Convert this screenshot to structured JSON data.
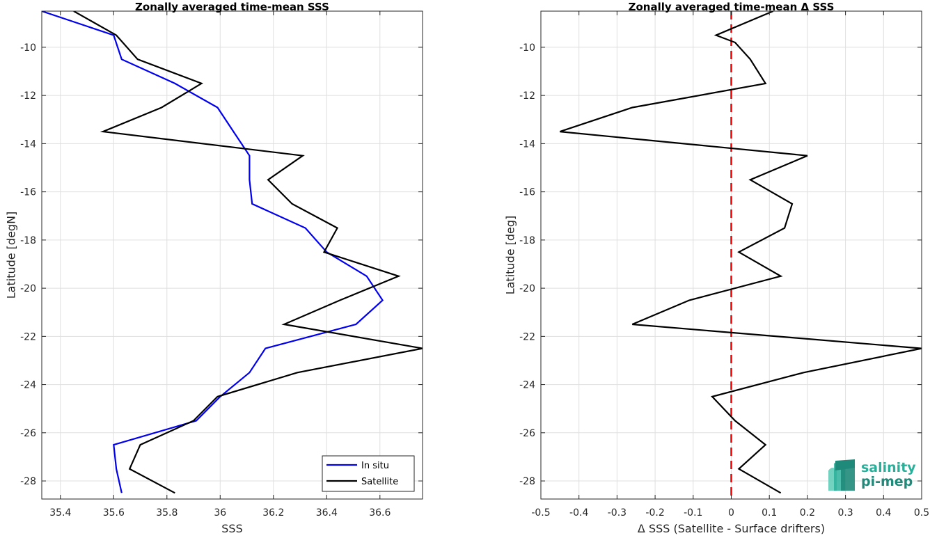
{
  "chart_data": [
    {
      "type": "line",
      "title": "Zonally averaged time-mean SSS",
      "xlabel": "SSS",
      "ylabel": "Latitude [degN]",
      "xlim": [
        35.33,
        36.76
      ],
      "ylim": [
        -28.75,
        -8.5
      ],
      "xticks": [
        35.4,
        35.6,
        35.8,
        36,
        36.2,
        36.4,
        36.6
      ],
      "xtick_labels": [
        "35.4",
        "35.6",
        "35.8",
        "36",
        "36.2",
        "36.4",
        "36.6"
      ],
      "yticks": [
        -10,
        -12,
        -14,
        -16,
        -18,
        -20,
        -22,
        -24,
        -26,
        -28
      ],
      "ytick_labels": [
        "-10",
        "-12",
        "-14",
        "-16",
        "-18",
        "-20",
        "-22",
        "-24",
        "-26",
        "-28"
      ],
      "grid": true,
      "legend": "bottom-right",
      "series": [
        {
          "name": "In situ",
          "color": "#0000ee",
          "x": [
            35.33,
            35.6,
            35.63,
            35.83,
            35.99,
            36.05,
            36.11,
            36.11,
            36.12,
            36.32,
            36.4,
            36.55,
            36.61,
            36.51,
            36.17,
            36.11,
            36.0,
            35.91,
            35.6,
            35.61,
            35.63
          ],
          "y": [
            -8.5,
            -9.5,
            -10.5,
            -11.5,
            -12.5,
            -13.5,
            -14.5,
            -15.5,
            -16.5,
            -17.5,
            -18.5,
            -19.5,
            -20.5,
            -21.5,
            -22.5,
            -23.5,
            -24.5,
            -25.5,
            -26.5,
            -27.5,
            -28.5
          ]
        },
        {
          "name": "Satellite",
          "color": "#000000",
          "x": [
            35.45,
            35.61,
            35.69,
            35.93,
            35.78,
            35.56,
            36.31,
            36.18,
            36.27,
            36.44,
            36.39,
            36.67,
            36.45,
            36.24,
            36.76,
            36.29,
            35.99,
            35.9,
            35.7,
            35.66,
            35.83
          ],
          "y": [
            -8.5,
            -9.5,
            -10.5,
            -11.5,
            -12.5,
            -13.5,
            -14.5,
            -15.5,
            -16.5,
            -17.5,
            -18.5,
            -19.5,
            -20.5,
            -21.5,
            -22.5,
            -23.5,
            -24.5,
            -25.5,
            -26.5,
            -27.5,
            -28.5
          ]
        }
      ]
    },
    {
      "type": "line",
      "title": "Zonally averaged time-mean Δ SSS",
      "xlabel": "Δ SSS (Satellite - Surface drifters)",
      "ylabel": "Latitude [deg]",
      "xlim": [
        -0.5,
        0.5
      ],
      "ylim": [
        -28.75,
        -8.5
      ],
      "xticks": [
        -0.5,
        -0.4,
        -0.3,
        -0.2,
        -0.1,
        0,
        0.1,
        0.2,
        0.3,
        0.4,
        0.5
      ],
      "xtick_labels": [
        "-0.5",
        "-0.4",
        "-0.3",
        "-0.2",
        "-0.1",
        "0",
        "0.1",
        "0.2",
        "0.3",
        "0.4",
        "0.5"
      ],
      "yticks": [
        -10,
        -12,
        -14,
        -16,
        -18,
        -20,
        -22,
        -24,
        -26,
        -28
      ],
      "ytick_labels": [
        "-10",
        "-12",
        "-14",
        "-16",
        "-18",
        "-20",
        "-22",
        "-24",
        "-26",
        "-28"
      ],
      "grid": true,
      "reference_line": {
        "x": 0,
        "color": "#ee0000",
        "style": "dashed"
      },
      "series": [
        {
          "color": "#000000",
          "x": [
            0.11,
            -0.04,
            0.01,
            0.05,
            0.09,
            -0.26,
            -0.45,
            0.2,
            0.05,
            0.16,
            0.14,
            0.02,
            0.13,
            -0.11,
            -0.26,
            0.5,
            0.19,
            -0.05,
            0.01,
            0.09,
            0.02,
            0.13
          ],
          "y": [
            -8.5,
            -9.5,
            -9.8,
            -10.5,
            -11.5,
            -12.5,
            -13.5,
            -14.5,
            -15.5,
            -16.5,
            -17.5,
            -18.5,
            -19.5,
            -20.5,
            -21.5,
            -22.5,
            -23.5,
            -24.5,
            -25.5,
            -26.5,
            -27.5,
            -28.5
          ]
        }
      ]
    }
  ],
  "logo": {
    "line1": "salinity",
    "line2": "pi-mep",
    "colors": [
      "#2ab09a",
      "#1f8a7a",
      "#5ccab5"
    ]
  }
}
